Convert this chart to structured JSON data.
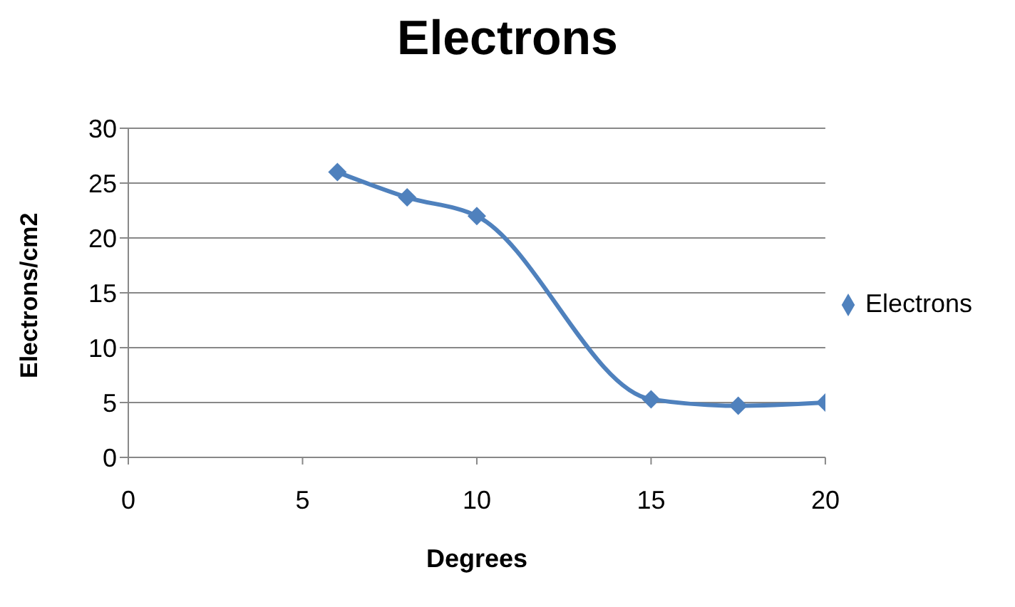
{
  "chart_data": {
    "type": "line",
    "title": "Electrons",
    "xlabel": "Degrees",
    "ylabel": "Electrons/cm2",
    "x": [
      6,
      8,
      10,
      15,
      17.5,
      20
    ],
    "series": [
      {
        "name": "Electrons",
        "color": "#4f81bd",
        "values": [
          26,
          23.7,
          22,
          5.3,
          4.7,
          5
        ]
      }
    ],
    "xlim": [
      0,
      20
    ],
    "xticks": [
      0,
      5,
      10,
      15,
      20
    ],
    "ylim": [
      0,
      30
    ],
    "yticks": [
      0,
      5,
      10,
      15,
      20,
      25,
      30
    ],
    "grid": "y",
    "legend": "right",
    "marker": "diamond",
    "line_style": "solid"
  }
}
